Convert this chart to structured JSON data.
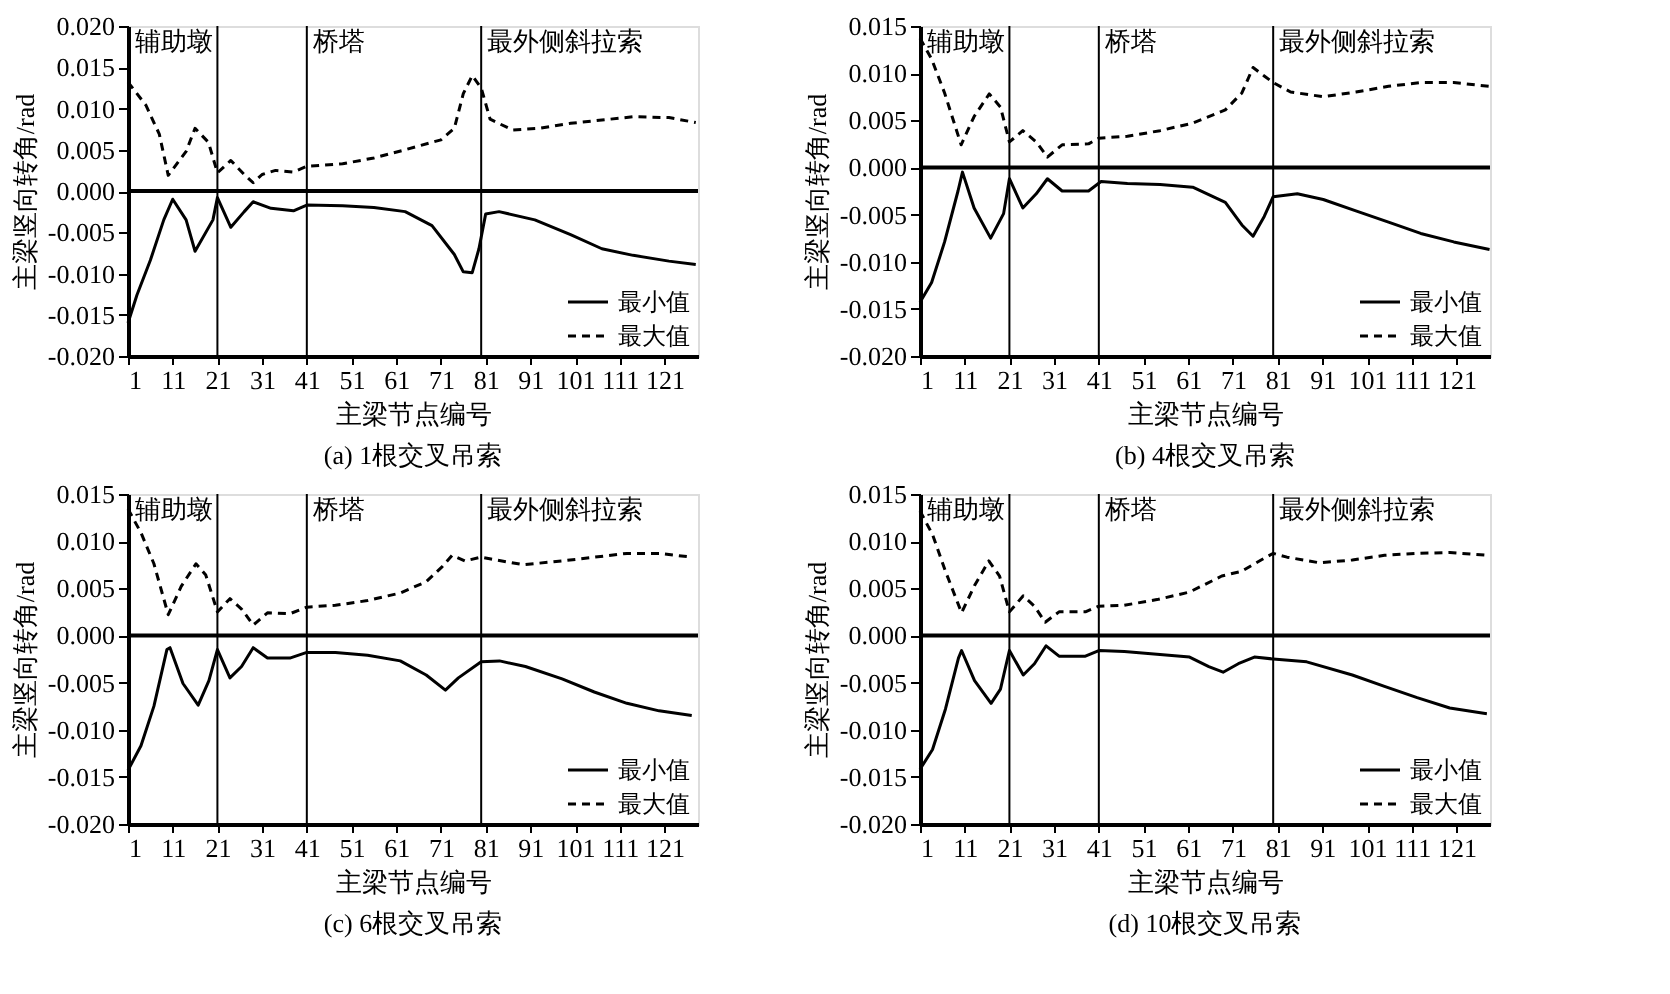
{
  "chart_data": [
    {
      "type": "line",
      "title": "(a) 1根交叉吊索",
      "xlabel": "主梁节点编号",
      "ylabel": "主梁竖向转角/rad",
      "xlim": [
        1,
        128.5
      ],
      "xticks": [
        1,
        11,
        21,
        31,
        41,
        51,
        61,
        71,
        81,
        91,
        101,
        111,
        121
      ],
      "ylim": [
        -0.02,
        0.02
      ],
      "yticks": [
        {
          "value": -0.02,
          "label": "-0.020"
        },
        {
          "value": -0.015,
          "label": "-0.015"
        },
        {
          "value": -0.01,
          "label": "-0.010"
        },
        {
          "value": -0.005,
          "label": "-0.005"
        },
        {
          "value": 0,
          "label": "0.000"
        },
        {
          "value": 0.005,
          "label": "0.005"
        },
        {
          "value": 0.01,
          "label": "0.010"
        },
        {
          "value": 0.015,
          "label": "0.015"
        },
        {
          "value": 0.02,
          "label": "0.020"
        }
      ],
      "grid": false,
      "legend": "bottom right",
      "marker": "none",
      "ref_lines": [
        {
          "axis": "x",
          "value": 21,
          "label": "辅助墩",
          "color": "#000000"
        },
        {
          "axis": "x",
          "value": 41,
          "label": "桥塔",
          "color": "#000000"
        },
        {
          "axis": "x",
          "value": 80,
          "label": "最外侧斜拉索",
          "color": "#000000"
        },
        {
          "axis": "y",
          "value": 0,
          "color": "#000000"
        }
      ],
      "series": [
        {
          "name": "最小值",
          "color": "#000000",
          "line_style": "solid",
          "x": [
            1,
            3,
            6,
            9,
            11,
            14,
            16,
            20,
            21,
            24,
            27,
            29,
            33,
            38,
            41,
            49,
            56,
            63,
            69,
            74,
            76,
            78,
            79.5,
            81,
            84,
            92,
            100,
            107,
            114,
            122,
            128
          ],
          "values": [
            -0.016,
            -0.0126,
            -0.0084,
            -0.0035,
            -0.001,
            -0.0035,
            -0.0073,
            -0.0035,
            -0.0008,
            -0.0044,
            -0.0025,
            -0.0013,
            -0.0021,
            -0.0024,
            -0.0017,
            -0.0018,
            -0.002,
            -0.0025,
            -0.0042,
            -0.0077,
            -0.0098,
            -0.0099,
            -0.007,
            -0.0028,
            -0.0025,
            -0.0035,
            -0.0053,
            -0.007,
            -0.0078,
            -0.0085,
            -0.0089
          ]
        },
        {
          "name": "最大值",
          "color": "#000000",
          "line_style": "dashed",
          "x": [
            1,
            5,
            8,
            10,
            14,
            16,
            19,
            21,
            24,
            27,
            29,
            31,
            34,
            38,
            41,
            49,
            56,
            63,
            71,
            74,
            76,
            78,
            80,
            82,
            87,
            93,
            100,
            107,
            114,
            122,
            128
          ],
          "values": [
            0.0132,
            0.0104,
            0.0069,
            0.0019,
            0.0048,
            0.0076,
            0.0059,
            0.0022,
            0.0037,
            0.002,
            0.001,
            0.002,
            0.0025,
            0.0023,
            0.003,
            0.0033,
            0.004,
            0.005,
            0.0062,
            0.0076,
            0.0118,
            0.014,
            0.0125,
            0.0087,
            0.0074,
            0.0076,
            0.0082,
            0.0086,
            0.009,
            0.0089,
            0.0083
          ]
        }
      ]
    },
    {
      "type": "line",
      "title": "(b) 4根交叉吊索",
      "xlabel": "主梁节点编号",
      "ylabel": "主梁竖向转角/rad",
      "xlim": [
        1,
        128.5
      ],
      "xticks": [
        1,
        11,
        21,
        31,
        41,
        51,
        61,
        71,
        81,
        91,
        101,
        111,
        121
      ],
      "ylim": [
        -0.02,
        0.015
      ],
      "yticks": [
        {
          "value": -0.02,
          "label": "-0.020"
        },
        {
          "value": -0.015,
          "label": "-0.015"
        },
        {
          "value": -0.01,
          "label": "-0.010"
        },
        {
          "value": -0.005,
          "label": "-0.005"
        },
        {
          "value": 0,
          "label": "0.000"
        },
        {
          "value": 0.005,
          "label": "0.005"
        },
        {
          "value": 0.01,
          "label": "0.010"
        },
        {
          "value": 0.015,
          "label": "0.015"
        }
      ],
      "grid": false,
      "legend": "bottom right",
      "marker": "none",
      "ref_lines": [
        {
          "axis": "x",
          "value": 21,
          "label": "辅助墩",
          "color": "#000000"
        },
        {
          "axis": "x",
          "value": 41,
          "label": "桥塔",
          "color": "#000000"
        },
        {
          "axis": "x",
          "value": 80,
          "label": "最外侧斜拉索",
          "color": "#000000"
        },
        {
          "axis": "y",
          "value": 0,
          "color": "#000000"
        }
      ],
      "series": [
        {
          "name": "最小值",
          "color": "#000000",
          "line_style": "solid",
          "x": [
            1,
            3.6,
            6.5,
            9.5,
            10.5,
            13.1,
            16.8,
            19.7,
            21,
            24,
            27,
            29.5,
            32.8,
            38.7,
            41.5,
            47.4,
            54.7,
            62,
            69.3,
            73,
            75.5,
            78,
            80,
            85.4,
            91.2,
            98.5,
            105.8,
            113,
            120.4,
            128.4
          ],
          "values": [
            -0.0143,
            -0.0122,
            -0.0079,
            -0.0025,
            -0.0005,
            -0.0043,
            -0.0075,
            -0.0049,
            -0.0012,
            -0.0043,
            -0.0028,
            -0.0012,
            -0.0025,
            -0.0025,
            -0.0015,
            -0.0017,
            -0.0018,
            -0.0021,
            -0.0037,
            -0.0061,
            -0.0073,
            -0.0052,
            -0.0031,
            -0.0028,
            -0.0034,
            -0.0046,
            -0.0058,
            -0.007,
            -0.0079,
            -0.0087
          ]
        },
        {
          "name": "最大值",
          "color": "#000000",
          "line_style": "dashed",
          "x": [
            1,
            3.6,
            6.5,
            10.2,
            13.1,
            16.5,
            19,
            21,
            24,
            27,
            29.5,
            32.8,
            38.7,
            41,
            47.4,
            54.7,
            62,
            69.3,
            73,
            75.5,
            78,
            80,
            83.9,
            91.2,
            98.5,
            105.8,
            113,
            120.4,
            128.4
          ],
          "values": [
            0.0137,
            0.0115,
            0.0079,
            0.0024,
            0.0054,
            0.0078,
            0.0064,
            0.0027,
            0.0039,
            0.0027,
            0.0011,
            0.0024,
            0.0025,
            0.0031,
            0.0033,
            0.0039,
            0.0047,
            0.0061,
            0.0079,
            0.0106,
            0.0097,
            0.009,
            0.008,
            0.0075,
            0.008,
            0.0086,
            0.009,
            0.009,
            0.0086
          ]
        }
      ]
    },
    {
      "type": "line",
      "title": "(c) 6根交叉吊索",
      "xlabel": "主梁节点编号",
      "ylabel": "主梁竖向转角/rad",
      "xlim": [
        1,
        128.5
      ],
      "xticks": [
        1,
        11,
        21,
        31,
        41,
        51,
        61,
        71,
        81,
        91,
        101,
        111,
        121
      ],
      "ylim": [
        -0.02,
        0.015
      ],
      "yticks": [
        {
          "value": -0.02,
          "label": "-0.020"
        },
        {
          "value": -0.015,
          "label": "-0.015"
        },
        {
          "value": -0.01,
          "label": "-0.010"
        },
        {
          "value": -0.005,
          "label": "-0.005"
        },
        {
          "value": 0,
          "label": "0.000"
        },
        {
          "value": 0.005,
          "label": "0.005"
        },
        {
          "value": 0.01,
          "label": "0.010"
        },
        {
          "value": 0.015,
          "label": "0.015"
        }
      ],
      "grid": false,
      "legend": "bottom right",
      "marker": "none",
      "ref_lines": [
        {
          "axis": "x",
          "value": 21,
          "label": "辅助墩",
          "color": "#000000"
        },
        {
          "axis": "x",
          "value": 41,
          "label": "桥塔",
          "color": "#000000"
        },
        {
          "axis": "x",
          "value": 80,
          "label": "最外侧斜拉索",
          "color": "#000000"
        },
        {
          "axis": "y",
          "value": 0,
          "color": "#000000"
        }
      ],
      "series": [
        {
          "name": "最小值",
          "color": "#000000",
          "line_style": "solid",
          "x": [
            1,
            3.9,
            6.8,
            9.7,
            10.4,
            13.3,
            16.7,
            19.1,
            21,
            23.8,
            26.4,
            29,
            32.2,
            37.2,
            41,
            47.4,
            54.6,
            61.9,
            67.7,
            72,
            74.9,
            80,
            84.1,
            89.9,
            98.1,
            105.3,
            112.6,
            119.8,
            127.1
          ],
          "values": [
            -0.0143,
            -0.0117,
            -0.0075,
            -0.0015,
            -0.0013,
            -0.0051,
            -0.0074,
            -0.0048,
            -0.0015,
            -0.0045,
            -0.0033,
            -0.0013,
            -0.0024,
            -0.0024,
            -0.0018,
            -0.0018,
            -0.0021,
            -0.0027,
            -0.0042,
            -0.0058,
            -0.0045,
            -0.0028,
            -0.0027,
            -0.0033,
            -0.0046,
            -0.006,
            -0.0072,
            -0.008,
            -0.0085
          ]
        },
        {
          "name": "最大值",
          "color": "#000000",
          "line_style": "dashed",
          "x": [
            1,
            3.9,
            6.8,
            10,
            12.9,
            16.2,
            18.4,
            21,
            23.8,
            26.4,
            29,
            32.2,
            37.2,
            41,
            47.4,
            54.6,
            61.9,
            67.7,
            71.3,
            73.5,
            76.4,
            80,
            82.2,
            89.4,
            98.1,
            105.3,
            112.6,
            119.8,
            127.1
          ],
          "values": [
            0.0134,
            0.0109,
            0.0076,
            0.0022,
            0.0052,
            0.0076,
            0.0064,
            0.0025,
            0.0039,
            0.0028,
            0.0011,
            0.0024,
            0.0023,
            0.003,
            0.0032,
            0.0037,
            0.0045,
            0.0057,
            0.0073,
            0.0085,
            0.0079,
            0.0083,
            0.0081,
            0.0075,
            0.0079,
            0.0083,
            0.0087,
            0.0087,
            0.0083
          ]
        }
      ]
    },
    {
      "type": "line",
      "title": "(d) 10根交叉吊索",
      "xlabel": "主梁节点编号",
      "ylabel": "主梁竖向转角/rad",
      "xlim": [
        1,
        128.5
      ],
      "xticks": [
        1,
        11,
        21,
        31,
        41,
        51,
        61,
        71,
        81,
        91,
        101,
        111,
        121
      ],
      "ylim": [
        -0.02,
        0.015
      ],
      "yticks": [
        {
          "value": -0.02,
          "label": "-0.020"
        },
        {
          "value": -0.015,
          "label": "-0.015"
        },
        {
          "value": -0.01,
          "label": "-0.010"
        },
        {
          "value": -0.005,
          "label": "-0.005"
        },
        {
          "value": 0,
          "label": "0.000"
        },
        {
          "value": 0.005,
          "label": "0.005"
        },
        {
          "value": 0.01,
          "label": "0.010"
        },
        {
          "value": 0.015,
          "label": "0.015"
        }
      ],
      "grid": false,
      "legend": "bottom right",
      "marker": "none",
      "ref_lines": [
        {
          "axis": "x",
          "value": 21,
          "label": "辅助墩",
          "color": "#000000"
        },
        {
          "axis": "x",
          "value": 41,
          "label": "桥塔",
          "color": "#000000"
        },
        {
          "axis": "x",
          "value": 80,
          "label": "最外侧斜拉索",
          "color": "#000000"
        },
        {
          "axis": "y",
          "value": 0,
          "color": "#000000"
        }
      ],
      "series": [
        {
          "name": "最小值",
          "color": "#000000",
          "line_style": "solid",
          "x": [
            1,
            3.8,
            6.7,
            9.6,
            10.3,
            13.2,
            16.9,
            19,
            21,
            24.1,
            26.6,
            29.2,
            32.1,
            38,
            41,
            46.7,
            54,
            61.3,
            65.6,
            68.8,
            72.2,
            75.8,
            80,
            87.5,
            97.7,
            104.9,
            112.2,
            119.5,
            127.8
          ],
          "values": [
            -0.0142,
            -0.0121,
            -0.0078,
            -0.0024,
            -0.0016,
            -0.0048,
            -0.0072,
            -0.0057,
            -0.0016,
            -0.0042,
            -0.003,
            -0.0011,
            -0.0022,
            -0.0022,
            -0.0016,
            -0.0017,
            -0.002,
            -0.0023,
            -0.0033,
            -0.0039,
            -0.003,
            -0.0023,
            -0.0025,
            -0.0028,
            -0.0042,
            -0.0054,
            -0.0066,
            -0.0077,
            -0.0083
          ]
        },
        {
          "name": "最大值",
          "color": "#000000",
          "line_style": "dashed",
          "x": [
            1,
            3.8,
            6.7,
            10.3,
            13.2,
            16.4,
            18.8,
            21,
            24.1,
            26.6,
            29,
            32.1,
            38,
            41,
            46.7,
            54,
            61.3,
            68.5,
            72.9,
            77.3,
            80,
            83.1,
            90.4,
            97.7,
            104.9,
            112.2,
            119.5,
            127.8
          ],
          "values": [
            0.0132,
            0.0107,
            0.0068,
            0.0024,
            0.0053,
            0.0079,
            0.0063,
            0.0025,
            0.0042,
            0.0031,
            0.0014,
            0.0025,
            0.0025,
            0.0031,
            0.0032,
            0.0038,
            0.0046,
            0.0063,
            0.0068,
            0.008,
            0.0087,
            0.0083,
            0.0077,
            0.008,
            0.0085,
            0.0087,
            0.0088,
            0.0085
          ]
        }
      ]
    }
  ]
}
